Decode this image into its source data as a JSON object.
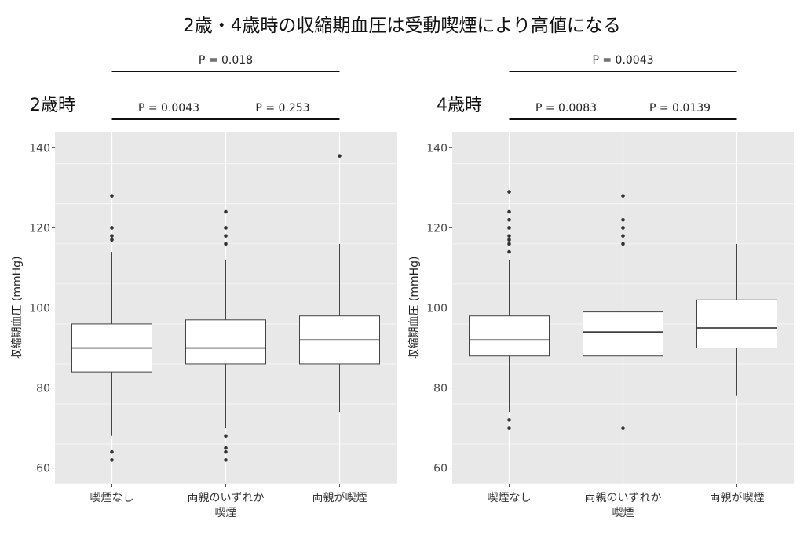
{
  "title": "2歳・4歳時の収縮期血圧は受動喫煙により高値になる",
  "colors": {
    "panel_background": "#e8e8e8",
    "gridline": "#ffffff",
    "box_fill": "#ffffff",
    "box_stroke": "#444444",
    "outlier": "#333333",
    "bracket": "#111111"
  },
  "chart_data": [
    {
      "type": "box",
      "title": "2歳時",
      "ylabel": "収縮期血圧 (mmHg)",
      "xlabel": "",
      "ylim": [
        56,
        144
      ],
      "yticks": [
        "60",
        "80",
        "100",
        "120",
        "140"
      ],
      "grid": true,
      "categories": [
        {
          "lines": [
            "喫煙なし"
          ]
        },
        {
          "lines": [
            "両親のいずれか",
            "喫煙"
          ]
        },
        {
          "lines": [
            "両親が喫煙"
          ]
        }
      ],
      "boxes": [
        {
          "whisker_low": 68,
          "q1": 84,
          "median": 90,
          "q3": 96,
          "whisker_high": 114,
          "outliers": [
            62,
            64,
            117,
            118,
            120,
            128
          ]
        },
        {
          "whisker_low": 70,
          "q1": 86,
          "median": 90,
          "q3": 97,
          "whisker_high": 112,
          "outliers": [
            62,
            64,
            65,
            68,
            116,
            118,
            120,
            124
          ]
        },
        {
          "whisker_low": 74,
          "q1": 86,
          "median": 92,
          "q3": 98,
          "whisker_high": 116,
          "outliers": [
            138
          ]
        }
      ],
      "comparisons": [
        {
          "from": 0,
          "to": 2,
          "label": "P = 0.018",
          "level": "upper"
        },
        {
          "from": 0,
          "to": 1,
          "label": "P = 0.0043",
          "level": "lower"
        },
        {
          "from": 1,
          "to": 2,
          "label": "P = 0.253",
          "level": "lower"
        }
      ]
    },
    {
      "type": "box",
      "title": "4歳時",
      "ylabel": "収縮期血圧 (mmHg)",
      "xlabel": "",
      "ylim": [
        56,
        144
      ],
      "yticks": [
        "60",
        "80",
        "100",
        "120",
        "140"
      ],
      "grid": true,
      "categories": [
        {
          "lines": [
            "喫煙なし"
          ]
        },
        {
          "lines": [
            "両親のいずれか",
            "喫煙"
          ]
        },
        {
          "lines": [
            "両親が喫煙"
          ]
        }
      ],
      "boxes": [
        {
          "whisker_low": 74,
          "q1": 88,
          "median": 92,
          "q3": 98,
          "whisker_high": 112,
          "outliers": [
            70,
            72,
            114,
            116,
            117,
            118,
            120,
            122,
            124,
            129
          ]
        },
        {
          "whisker_low": 72,
          "q1": 88,
          "median": 94,
          "q3": 99,
          "whisker_high": 114,
          "outliers": [
            70,
            116,
            118,
            120,
            122,
            128
          ]
        },
        {
          "whisker_low": 78,
          "q1": 90,
          "median": 95,
          "q3": 102,
          "whisker_high": 116,
          "outliers": []
        }
      ],
      "comparisons": [
        {
          "from": 0,
          "to": 2,
          "label": "P = 0.0043",
          "level": "upper"
        },
        {
          "from": 0,
          "to": 1,
          "label": "P = 0.0083",
          "level": "lower"
        },
        {
          "from": 1,
          "to": 2,
          "label": "P = 0.0139",
          "level": "lower"
        }
      ]
    }
  ]
}
